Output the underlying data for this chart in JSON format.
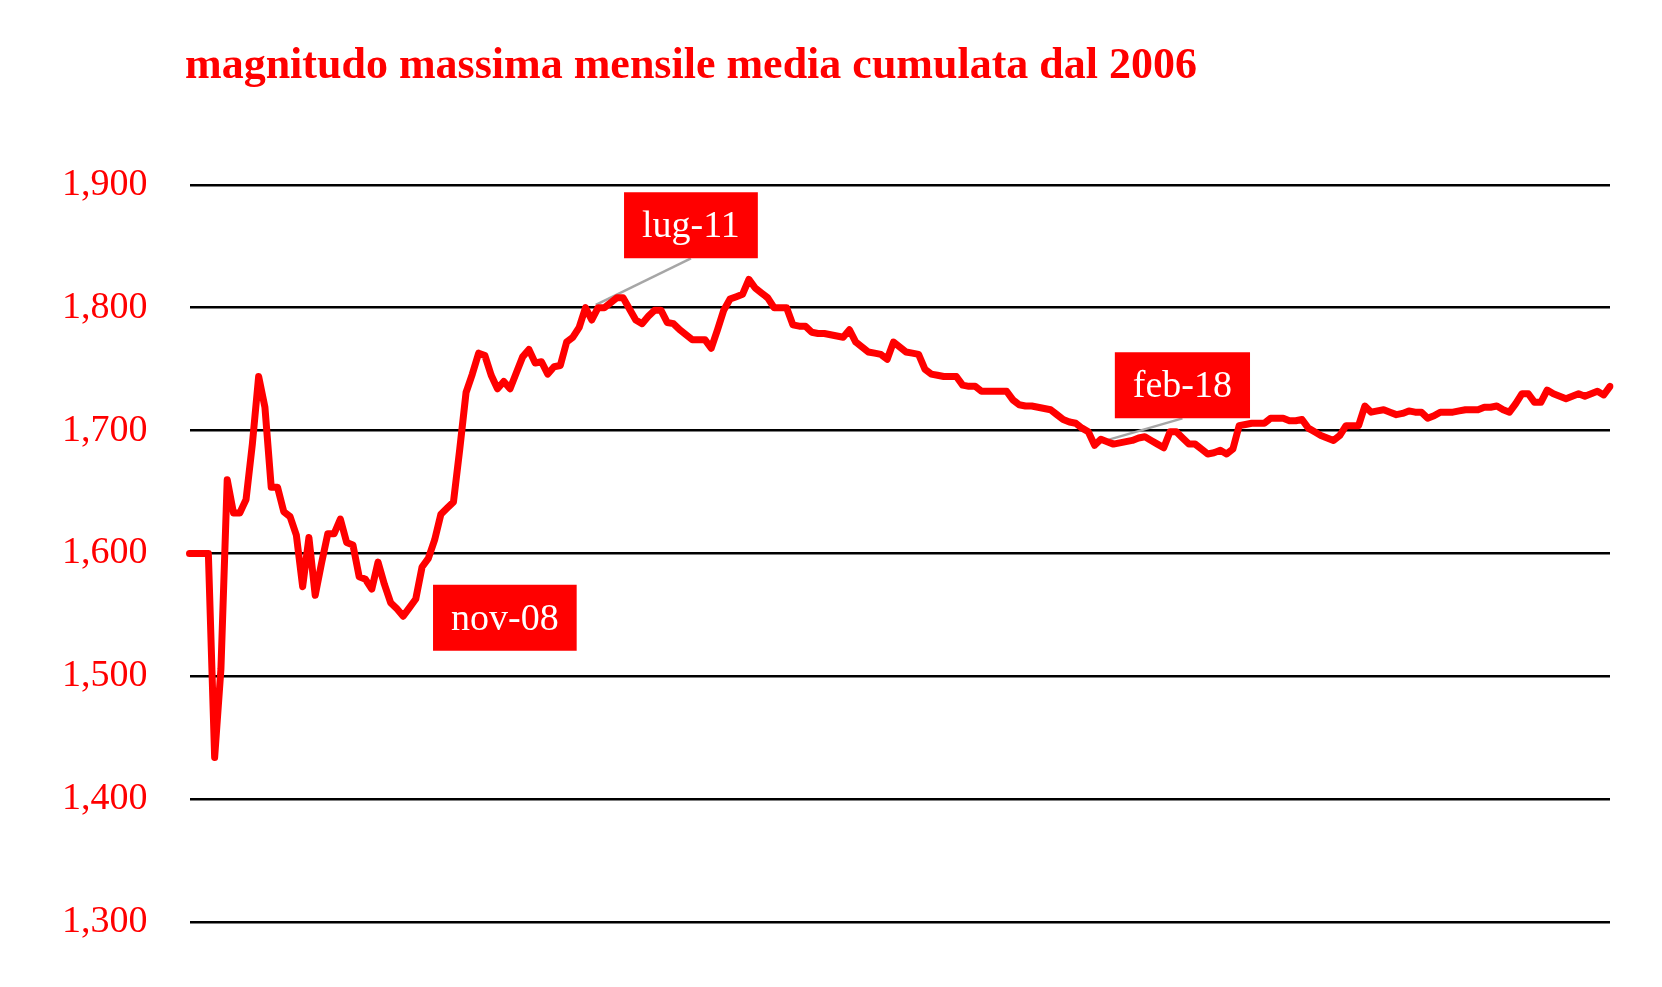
{
  "chart_data": {
    "type": "line",
    "title": "magnitudo massima mensile media cumulata dal 2006",
    "color": "#ff0000",
    "grid": "y",
    "legend": false,
    "marker": "none",
    "line_style": "solid",
    "tick_labels": "y",
    "ylim": [
      1300,
      1900
    ],
    "yticks": [
      {
        "value": 1300,
        "label": "1,300"
      },
      {
        "value": 1400,
        "label": "1,400"
      },
      {
        "value": 1500,
        "label": "1,500"
      },
      {
        "value": 1600,
        "label": "1,600"
      },
      {
        "value": 1700,
        "label": "1,700"
      },
      {
        "value": 1800,
        "label": "1,800"
      },
      {
        "value": 1900,
        "label": "1,900"
      }
    ],
    "annotations": [
      "nov-08",
      "lug-11",
      "feb-18"
    ],
    "categories": [
      null,
      null,
      null,
      null,
      null,
      null,
      null,
      null,
      null,
      null,
      null,
      null,
      null,
      null,
      null,
      null,
      null,
      null,
      null,
      null,
      null,
      null,
      null,
      null,
      null,
      null,
      null,
      null,
      null,
      null,
      null,
      null,
      null,
      null,
      null,
      null,
      null,
      null,
      null,
      null,
      null,
      null,
      null,
      null,
      null,
      null,
      null,
      null,
      null,
      null,
      null,
      null,
      null,
      null,
      null,
      null,
      null,
      null,
      null,
      null,
      null,
      null,
      null,
      null,
      null,
      null,
      null,
      null,
      null,
      null,
      null,
      null,
      null,
      null,
      null,
      null,
      null,
      null,
      null,
      null,
      null,
      null,
      null,
      null,
      null,
      null,
      null,
      null,
      null,
      null,
      null,
      null,
      null,
      null,
      null,
      null,
      null,
      null,
      null,
      null,
      null,
      null,
      null,
      null,
      null,
      null,
      null,
      null,
      null,
      null,
      null,
      null,
      null,
      null,
      null,
      null,
      null,
      null,
      null,
      null,
      null,
      null,
      null,
      null,
      null,
      null,
      null,
      null,
      null,
      null,
      null,
      null,
      null,
      null,
      null,
      null,
      null,
      null,
      null,
      null,
      null,
      null,
      null,
      null,
      null,
      null,
      null,
      null,
      null,
      null,
      null,
      null,
      null,
      null,
      null,
      null,
      null,
      null,
      null,
      null,
      null,
      null,
      null,
      null,
      null,
      null,
      null,
      null,
      null,
      null,
      null,
      null,
      null,
      null,
      null,
      null,
      null,
      null,
      null,
      null,
      null,
      null,
      null,
      null,
      null,
      null,
      null,
      null,
      null,
      null,
      null,
      null,
      null,
      null,
      null,
      null,
      null,
      null,
      null,
      null,
      null,
      null,
      null,
      null,
      null,
      null,
      null,
      null,
      null,
      null,
      null,
      null,
      null,
      null,
      null,
      null,
      null,
      null,
      null,
      null,
      null,
      null,
      null,
      null,
      null,
      null,
      null
    ],
    "values": [
      1600,
      1600,
      1600,
      1600,
      1434,
      1506,
      1660,
      1633,
      1633,
      1644,
      1689,
      1744,
      1719,
      1654,
      1654,
      1634,
      1630,
      1615,
      1573,
      1613,
      1566,
      1592,
      1616,
      1616,
      1628,
      1609,
      1607,
      1581,
      1579,
      1571,
      1593,
      1575,
      1560,
      1555,
      1549,
      1556,
      1563,
      1589,
      1596,
      1611,
      1632,
      1637,
      1642,
      1685,
      1731,
      1746,
      1763,
      1761,
      1745,
      1734,
      1740,
      1734,
      1747,
      1760,
      1766,
      1755,
      1756,
      1746,
      1752,
      1753,
      1772,
      1776,
      1784,
      1800,
      1790,
      1800,
      1800,
      1804,
      1808,
      1808,
      1799,
      1790,
      1787,
      1793,
      1798,
      1798,
      1788,
      1787,
      1782,
      1778,
      1774,
      1774,
      1774,
      1767,
      1782,
      1798,
      1807,
      1809,
      1811,
      1823,
      1816,
      1812,
      1808,
      1800,
      1800,
      1800,
      1786,
      1785,
      1785,
      1780,
      1779,
      1779,
      1778,
      1777,
      1776,
      1782,
      1772,
      1768,
      1764,
      1763,
      1762,
      1758,
      1772,
      1768,
      1764,
      1763,
      1762,
      1750,
      1746,
      1745,
      1744,
      1744,
      1744,
      1737,
      1736,
      1736,
      1732,
      1732,
      1732,
      1732,
      1732,
      1725,
      1721,
      1720,
      1720,
      1719,
      1718,
      1717,
      1713,
      1709,
      1707,
      1706,
      1702,
      1699,
      1688,
      1693,
      1691,
      1689,
      1690,
      1691,
      1692,
      1694,
      1695,
      1692,
      1689,
      1686,
      1699,
      1699,
      1694,
      1689,
      1689,
      1685,
      1681,
      1682,
      1684,
      1681,
      1685,
      1704,
      1705,
      1706,
      1706,
      1706,
      1710,
      1710,
      1710,
      1708,
      1708,
      1709,
      1702,
      1699,
      1696,
      1694,
      1692,
      1696,
      1704,
      1704,
      1704,
      1720,
      1715,
      1716,
      1717,
      1715,
      1713,
      1714,
      1716,
      1715,
      1715,
      1710,
      1712,
      1715,
      1715,
      1715,
      1716,
      1717,
      1717,
      1717,
      1719,
      1719,
      1720,
      1717,
      1715,
      1722,
      1730,
      1730,
      1723,
      1723,
      1733,
      1730,
      1728,
      1726,
      1728,
      1730,
      1728,
      1730,
      1732,
      1729,
      1736
    ]
  }
}
